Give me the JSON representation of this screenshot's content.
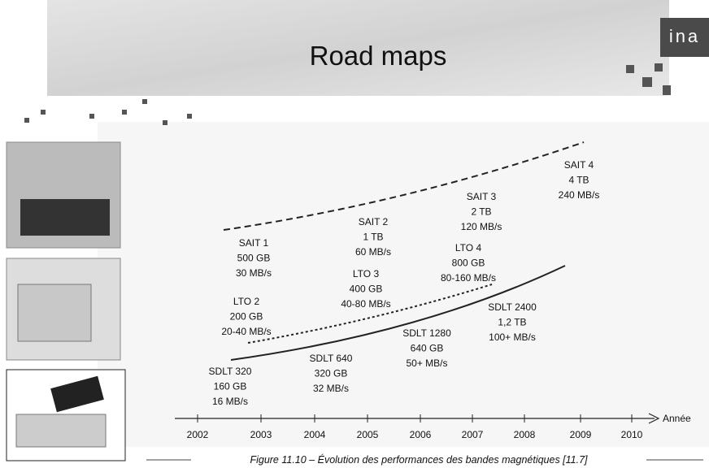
{
  "header": {
    "title": "Road maps",
    "logo": "ina"
  },
  "timeline": {
    "ticks": [
      "2002",
      "2003",
      "2004",
      "2005",
      "2006",
      "2007",
      "2008",
      "2009",
      "2010"
    ],
    "axis_label": "Année"
  },
  "annotations": [
    {
      "lines": [
        "SAIT 1",
        "500 GB",
        "30 MB/s"
      ]
    },
    {
      "lines": [
        "SAIT 2",
        "1 TB",
        "60 MB/s"
      ]
    },
    {
      "lines": [
        "SAIT 3",
        "2 TB",
        "120 MB/s"
      ]
    },
    {
      "lines": [
        "SAIT 4",
        "4 TB",
        "240 MB/s"
      ]
    },
    {
      "lines": [
        "LTO 2",
        "200 GB",
        "20-40 MB/s"
      ]
    },
    {
      "lines": [
        "LTO 3",
        "400 GB",
        "40-80 MB/s"
      ]
    },
    {
      "lines": [
        "LTO 4",
        "800 GB",
        "80-160 MB/s"
      ]
    },
    {
      "lines": [
        "SDLT 320",
        "160 GB",
        "16 MB/s"
      ]
    },
    {
      "lines": [
        "SDLT 640",
        "320 GB",
        "32 MB/s"
      ]
    },
    {
      "lines": [
        "SDLT 1280",
        "640 GB",
        "50+ MB/s"
      ]
    },
    {
      "lines": [
        "SDLT 2400",
        "1,2 TB",
        "100+ MB/s"
      ]
    }
  ],
  "caption": "Figure 11.10 – Évolution des performances des bandes magnétiques [11.7]"
}
